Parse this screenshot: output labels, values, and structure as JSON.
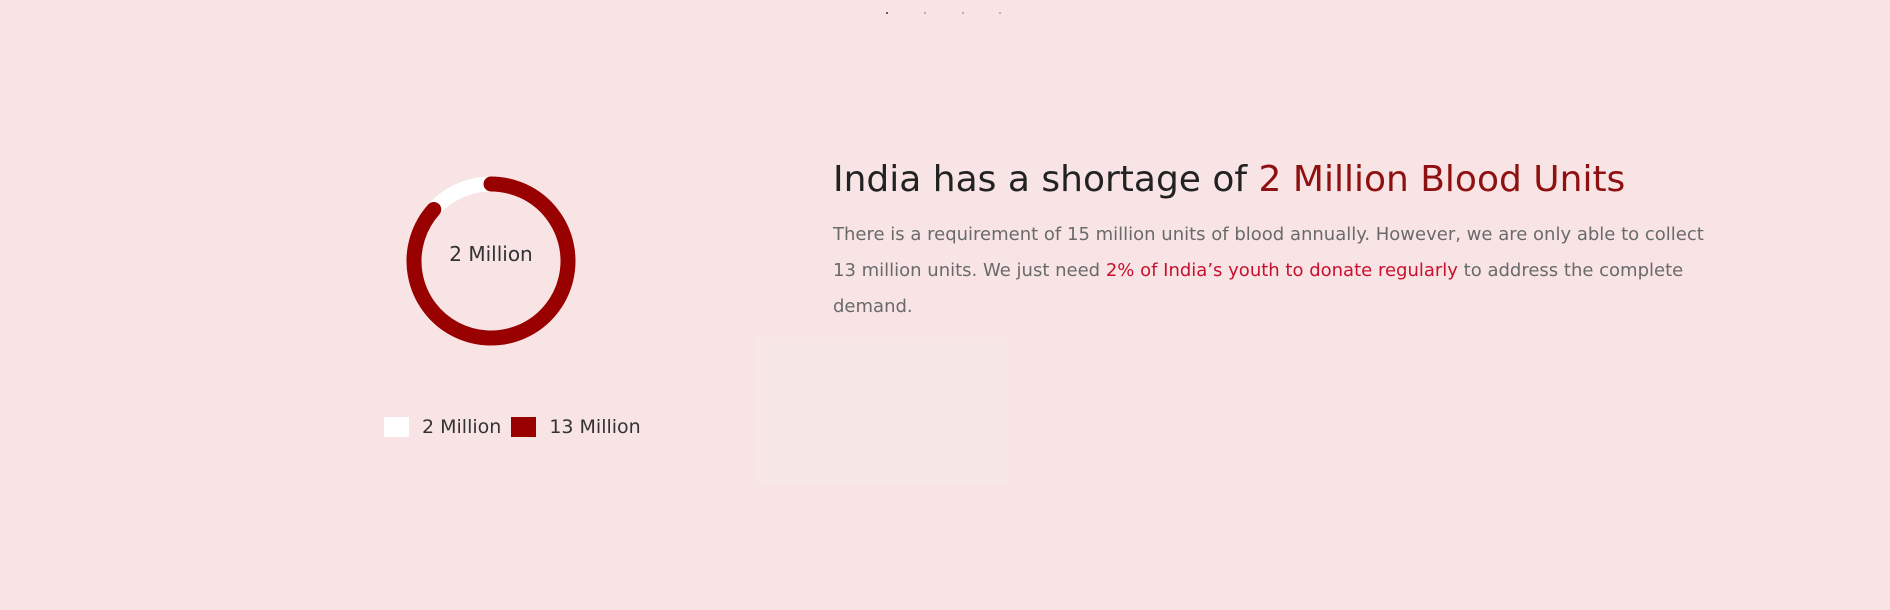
{
  "chart_data": {
    "type": "pie",
    "variant": "donut",
    "center_label": "2 Million",
    "slices": [
      {
        "label": "2 Million",
        "value": 2,
        "color": "#ffffff"
      },
      {
        "label": "13 Million",
        "value": 13,
        "color": "#990000"
      }
    ],
    "legend_position": "bottom",
    "title": "",
    "xlabel": "",
    "ylabel": ""
  },
  "carousel": {
    "dot_count": 4,
    "active_index": 0
  },
  "headline": {
    "prefix": "India has a shortage of ",
    "accent": "2 Million Blood Units"
  },
  "paragraph": {
    "before": "There is a requirement of 15 million units of blood annually. However, we are only able to collect 13 million units. We just need ",
    "highlight": "2% of India’s youth to donate regularly",
    "after": " to address the complete demand."
  },
  "colors": {
    "background": "#f8e4e4",
    "accent_dark_red": "#990000",
    "highlight_red": "#c8102e"
  }
}
